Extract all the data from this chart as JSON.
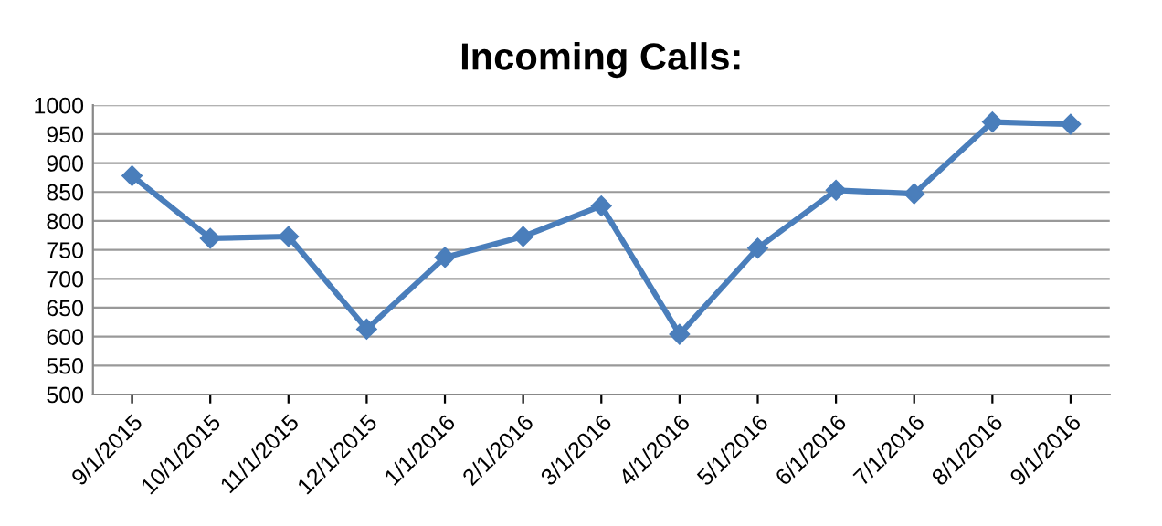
{
  "chart_data": {
    "type": "line",
    "title": "Incoming Calls:",
    "categories": [
      "9/1/2015",
      "10/1/2015",
      "11/1/2015",
      "12/1/2015",
      "1/1/2016",
      "2/1/2016",
      "3/1/2016",
      "4/1/2016",
      "5/1/2016",
      "6/1/2016",
      "7/1/2016",
      "8/1/2016",
      "9/1/2016"
    ],
    "series": [
      {
        "color": "#4a7ebb",
        "values": [
          878,
          770,
          773,
          613,
          737,
          773,
          826,
          604,
          753,
          853,
          847,
          971,
          967
        ]
      }
    ],
    "ylim": [
      500,
      1000
    ],
    "yticks": [
      500,
      550,
      600,
      650,
      700,
      750,
      800,
      850,
      900,
      950,
      1000
    ],
    "grid": "y",
    "marker": "diamond",
    "line_style": "solid"
  }
}
